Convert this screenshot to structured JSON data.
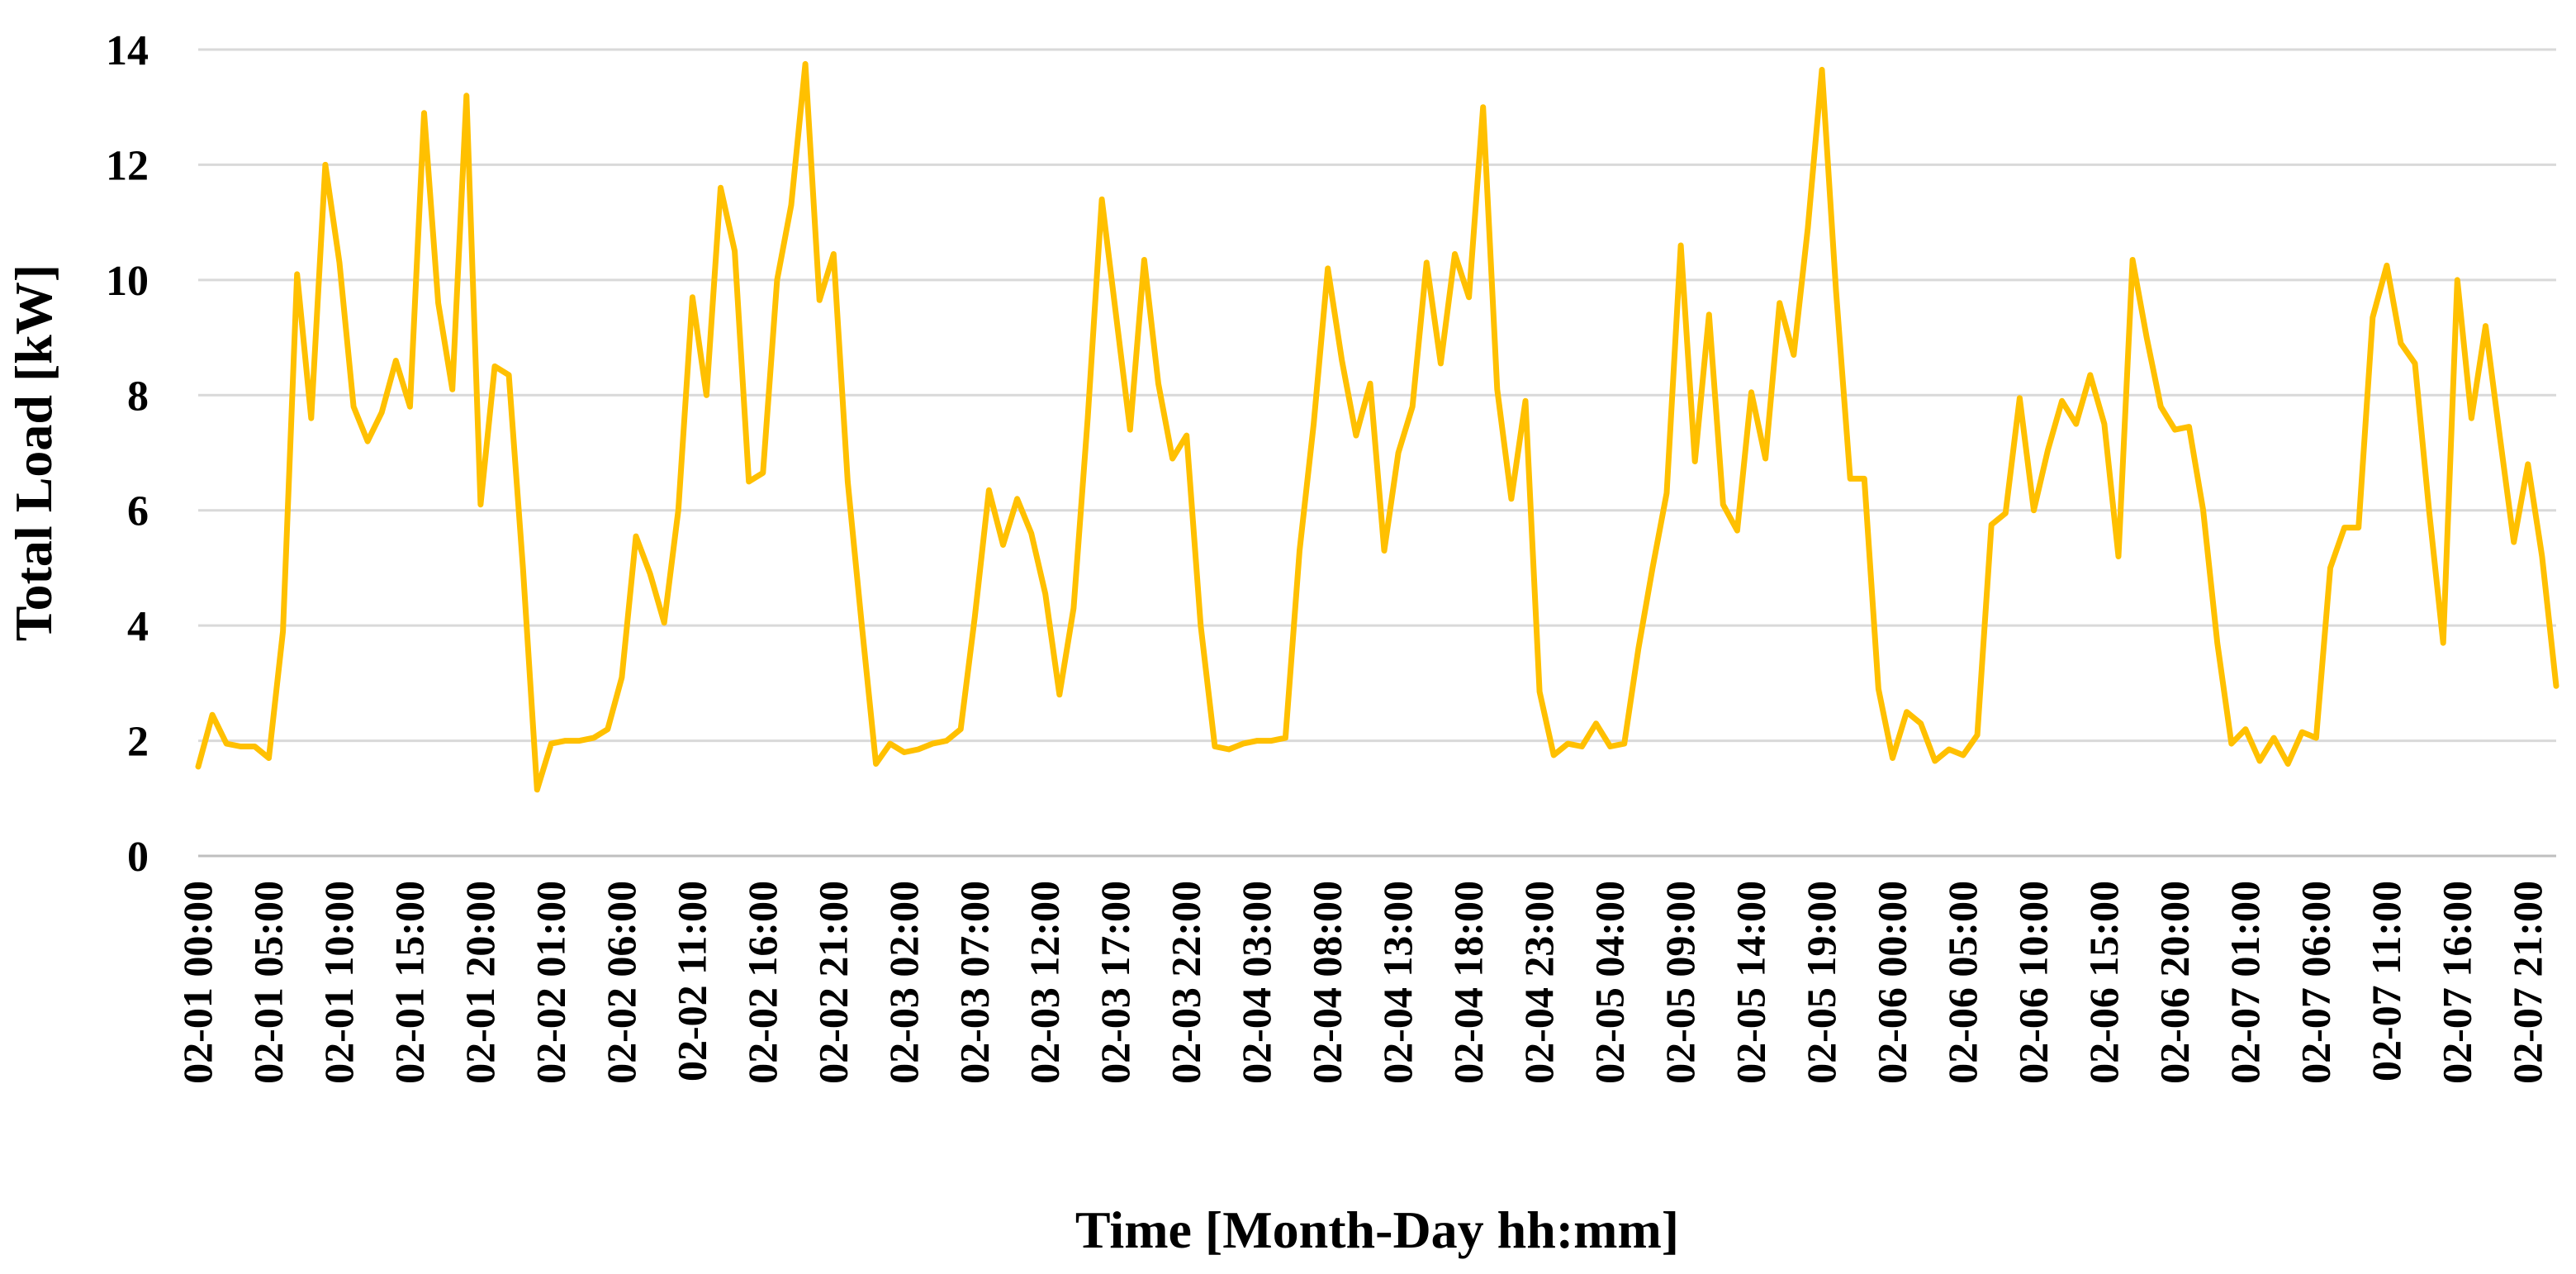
{
  "chart_data": {
    "type": "line",
    "title": "",
    "xlabel": "Time [Month-Day hh:mm]",
    "ylabel": "Total Load [kW]",
    "ylim": [
      0,
      14
    ],
    "yticks": [
      "0",
      "2",
      "4",
      "6",
      "8",
      "10",
      "12",
      "14"
    ],
    "grid": true,
    "legend": "none",
    "x_tick_labels": [
      "02-01 00:00",
      "02-01 05:00",
      "02-01 10:00",
      "02-01 15:00",
      "02-01 20:00",
      "02-02 01:00",
      "02-02 06:00",
      "02-02 11:00",
      "02-02 16:00",
      "02-02 21:00",
      "02-03 02:00",
      "02-03 07:00",
      "02-03 12:00",
      "02-03 17:00",
      "02-03 22:00",
      "02-04 03:00",
      "02-04 08:00",
      "02-04 13:00",
      "02-04 18:00",
      "02-04 23:00",
      "02-05 04:00",
      "02-05 09:00",
      "02-05 14:00",
      "02-05 19:00",
      "02-06 00:00",
      "02-06 05:00",
      "02-06 10:00",
      "02-06 15:00",
      "02-06 20:00",
      "02-07 01:00",
      "02-07 06:00",
      "02-07 11:00",
      "02-07 16:00",
      "02-07 21:00"
    ],
    "x_start": "02-01 00:00",
    "x_step": "1 h",
    "series": [
      {
        "color": "#FFC000",
        "values": [
          1.55,
          2.45,
          1.95,
          1.9,
          1.9,
          1.7,
          3.9,
          10.1,
          7.6,
          12,
          10.3,
          7.8,
          7.2,
          7.7,
          8.6,
          7.8,
          12.9,
          9.6,
          8.1,
          13.2,
          6.1,
          8.5,
          8.35,
          5,
          1.15,
          1.95,
          2,
          2,
          2.05,
          2.2,
          3.1,
          5.55,
          4.9,
          4.05,
          6,
          9.7,
          8,
          11.6,
          10.5,
          6.5,
          6.65,
          10,
          11.3,
          13.75,
          9.65,
          10.45,
          6.5,
          4,
          1.6,
          1.95,
          1.8,
          1.85,
          1.95,
          2,
          2.2,
          4.15,
          6.35,
          5.4,
          6.2,
          5.6,
          4.55,
          2.8,
          4.3,
          7.6,
          11.4,
          9.4,
          7.4,
          10.35,
          8.2,
          6.9,
          7.3,
          4,
          1.9,
          1.85,
          1.95,
          2,
          2,
          2.05,
          5.3,
          7.5,
          10.2,
          8.6,
          7.3,
          8.2,
          5.3,
          7,
          7.8,
          10.3,
          8.55,
          10.45,
          9.7,
          13,
          8.1,
          6.2,
          7.9,
          2.85,
          1.75,
          1.95,
          1.9,
          2.3,
          1.9,
          1.95,
          3.6,
          5,
          6.3,
          10.6,
          6.85,
          9.4,
          6.1,
          5.65,
          8.05,
          6.9,
          9.6,
          8.7,
          10.9,
          13.65,
          9.8,
          6.55,
          6.55,
          2.9,
          1.7,
          2.5,
          2.3,
          1.65,
          1.85,
          1.75,
          2.1,
          5.75,
          5.95,
          7.95,
          6,
          7.05,
          7.9,
          7.5,
          8.35,
          7.5,
          5.2,
          10.35,
          9,
          7.8,
          7.4,
          7.45,
          6,
          3.7,
          1.95,
          2.2,
          1.65,
          2.05,
          1.6,
          2.15,
          2.05,
          5,
          5.7,
          5.7,
          9.35,
          10.25,
          8.9,
          8.55,
          6,
          3.7,
          10,
          7.6,
          9.2,
          7.3,
          5.45,
          6.8,
          5.2,
          2.95
        ]
      }
    ]
  }
}
